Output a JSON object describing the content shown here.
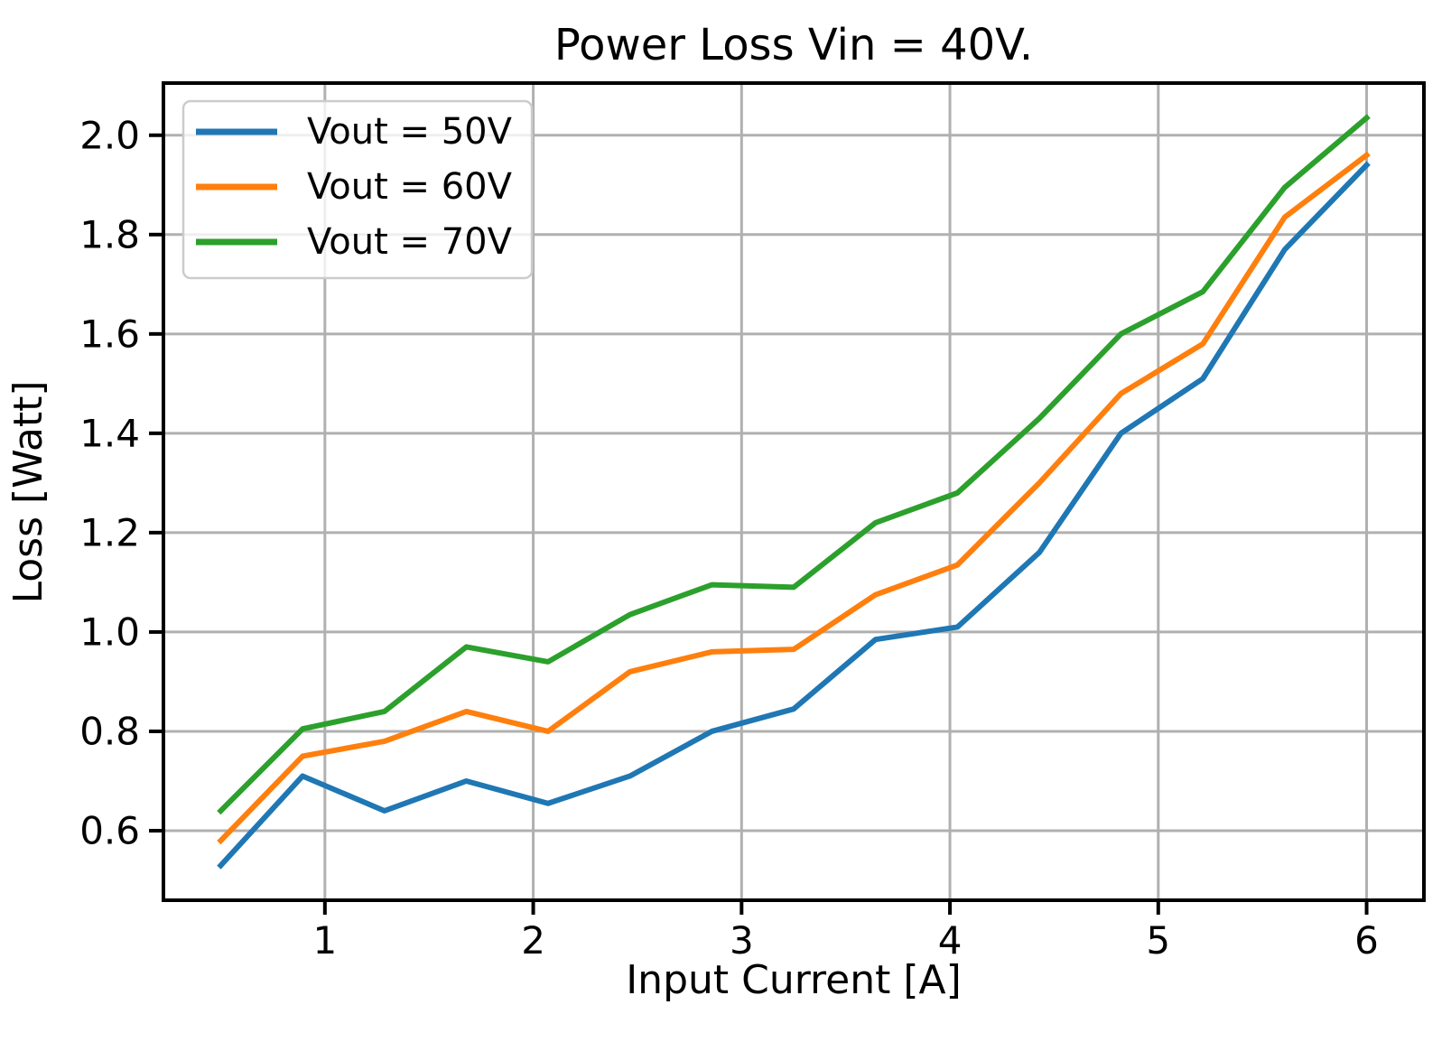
{
  "chart_data": {
    "type": "line",
    "title": "Power Loss Vin = 40V.",
    "xlabel": "Input Current [A]",
    "ylabel": "Loss [Watt]",
    "x": [
      0.5,
      0.893,
      1.286,
      1.679,
      2.071,
      2.464,
      2.857,
      3.25,
      3.643,
      4.036,
      4.429,
      4.821,
      5.214,
      5.607,
      6.0
    ],
    "series": [
      {
        "name": "Vout = 50V",
        "color": "#1f77b4",
        "values": [
          0.53,
          0.71,
          0.64,
          0.7,
          0.655,
          0.71,
          0.8,
          0.845,
          0.985,
          1.01,
          1.16,
          1.4,
          1.51,
          1.77,
          1.94
        ]
      },
      {
        "name": "Vout = 60V",
        "color": "#ff7f0e",
        "values": [
          0.58,
          0.75,
          0.78,
          0.84,
          0.8,
          0.92,
          0.96,
          0.965,
          1.075,
          1.135,
          1.3,
          1.48,
          1.58,
          1.835,
          1.96
        ]
      },
      {
        "name": "Vout = 70V",
        "color": "#2ca02c",
        "values": [
          0.64,
          0.805,
          0.84,
          0.97,
          0.94,
          1.035,
          1.095,
          1.09,
          1.22,
          1.28,
          1.43,
          1.6,
          1.685,
          1.895,
          2.035
        ]
      }
    ],
    "xlim": [
      0.225,
      6.275
    ],
    "ylim": [
      0.46,
      2.105
    ],
    "xticks": [
      1,
      2,
      3,
      4,
      5,
      6
    ],
    "xtick_labels": [
      "1",
      "2",
      "3",
      "4",
      "5",
      "6"
    ],
    "yticks": [
      0.6,
      0.8,
      1.0,
      1.2,
      1.4,
      1.6,
      1.8,
      2.0
    ],
    "ytick_labels": [
      "0.6",
      "0.8",
      "1.0",
      "1.2",
      "1.4",
      "1.6",
      "1.8",
      "2.0"
    ],
    "grid": true,
    "legend": {
      "position": "upper left",
      "entries": [
        "Vout = 50V",
        "Vout = 60V",
        "Vout = 70V"
      ]
    },
    "colors": {
      "background": "#ffffff",
      "grid": "#b0b0b0",
      "spine": "#000000",
      "text": "#000000",
      "legend_border": "#cccccc",
      "legend_fill": "#ffffff"
    }
  }
}
